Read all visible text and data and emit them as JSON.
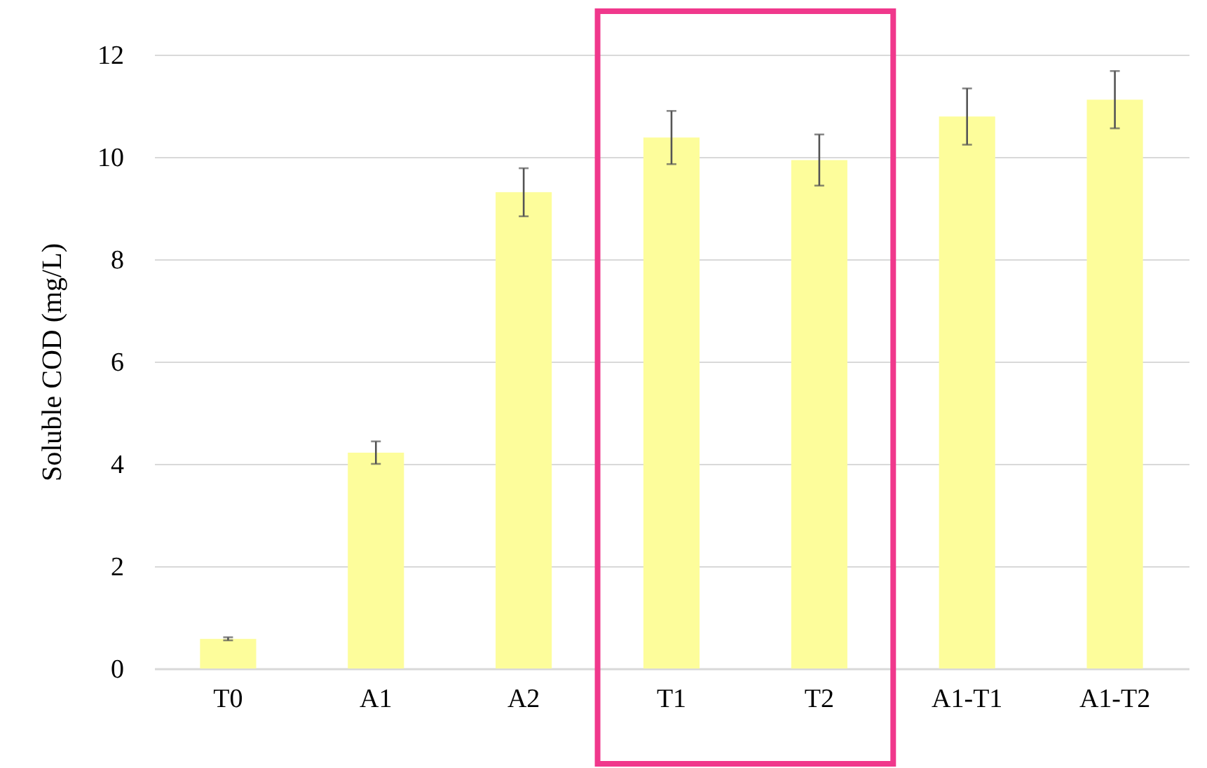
{
  "chart_data": {
    "type": "bar",
    "ylabel": "Soluble COD (mg/L)",
    "categories": [
      "T0",
      "A1",
      "A2",
      "T1",
      "T2",
      "A1-T1",
      "A1-T2"
    ],
    "values": [
      0.58,
      4.22,
      9.31,
      10.38,
      9.94,
      10.79,
      11.12
    ],
    "errors": [
      0.03,
      0.22,
      0.47,
      0.52,
      0.5,
      0.55,
      0.56
    ],
    "color": "#fdfd9b",
    "ylim": [
      0,
      12
    ],
    "yticks": [
      0,
      2,
      4,
      6,
      8,
      10,
      12
    ],
    "grid": "y"
  }
}
